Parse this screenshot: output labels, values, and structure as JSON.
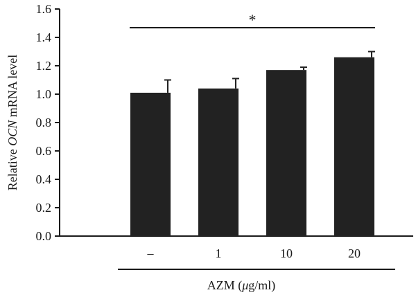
{
  "chart_data": {
    "type": "bar",
    "categories": [
      "–",
      "1",
      "10",
      "20"
    ],
    "values": [
      1.01,
      1.04,
      1.17,
      1.26
    ],
    "errors": [
      0.09,
      0.07,
      0.02,
      0.04
    ],
    "bar_color": "#222222",
    "ylim": [
      0.0,
      1.6
    ],
    "yticks": [
      "0.0",
      "0.2",
      "0.4",
      "0.6",
      "0.8",
      "1.0",
      "1.2",
      "1.4",
      "1.6"
    ],
    "ylabel": {
      "prefix": "Relative ",
      "gene": "OCN",
      "suffix": " mRNA level"
    },
    "xlabel": {
      "prefix": "AZM (",
      "mu": "μ",
      "suffix": "g/ml)"
    },
    "significance": {
      "from_category": "–",
      "to_category": "20",
      "label": "*"
    }
  }
}
